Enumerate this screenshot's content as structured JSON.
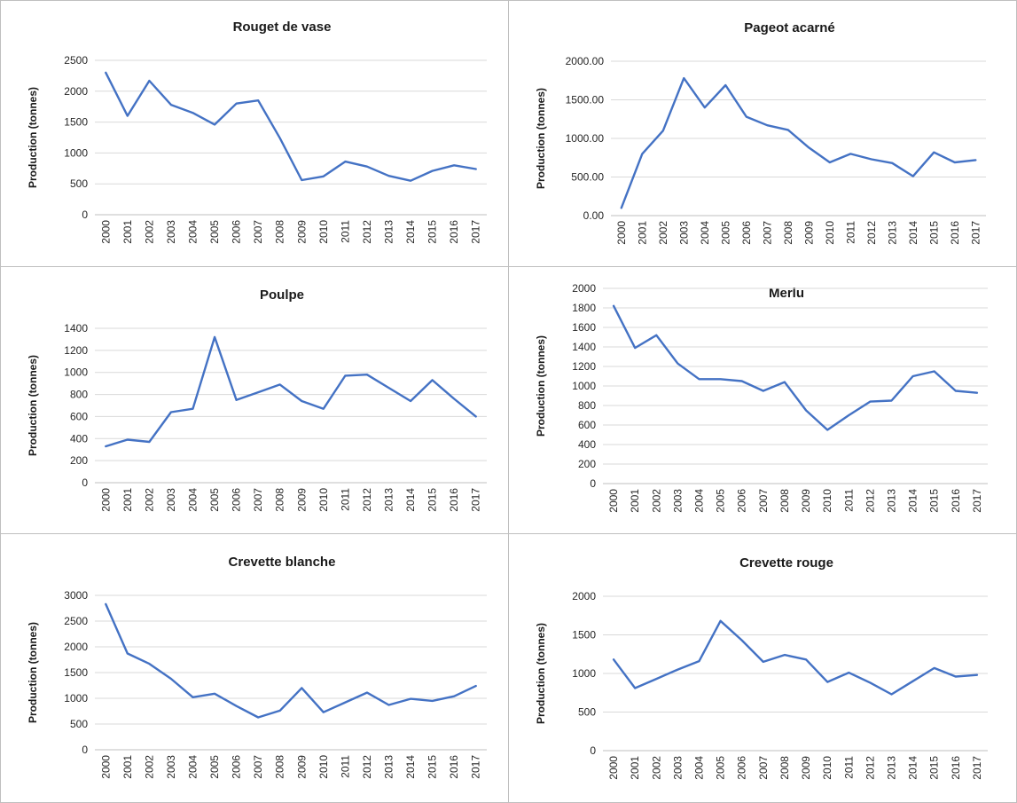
{
  "colors": {
    "line": "#4472C4",
    "grid": "#d9d9d9",
    "border": "#bfbfbf"
  },
  "chart_data": [
    {
      "type": "line",
      "title": "Rouget de vase",
      "ylabel": "Production (tonnes)",
      "xlabel": "",
      "categories": [
        "2000",
        "2001",
        "2002",
        "2003",
        "2004",
        "2005",
        "2006",
        "2007",
        "2008",
        "2009",
        "2010",
        "2011",
        "2012",
        "2013",
        "2014",
        "2015",
        "2016",
        "2017"
      ],
      "values": [
        2300,
        1600,
        2170,
        1780,
        1650,
        1460,
        1800,
        1850,
        1240,
        560,
        620,
        860,
        780,
        630,
        550,
        710,
        800,
        740
      ],
      "ylim": [
        0,
        2500
      ],
      "yticks": [
        "0",
        "500",
        "1000",
        "1500",
        "2000",
        "2500"
      ],
      "grid": true
    },
    {
      "type": "line",
      "title": "Pageot acarné",
      "ylabel": "Production (tonnes)",
      "xlabel": "",
      "categories": [
        "2000",
        "2001",
        "2002",
        "2003",
        "2004",
        "2005",
        "2006",
        "2007",
        "2008",
        "2009",
        "2010",
        "2011",
        "2012",
        "2013",
        "2014",
        "2015",
        "2016",
        "2017"
      ],
      "values": [
        100,
        800,
        1100,
        1780,
        1400,
        1690,
        1280,
        1170,
        1110,
        880,
        690,
        800,
        730,
        680,
        510,
        820,
        690,
        720
      ],
      "ylim": [
        0,
        2000
      ],
      "yticks": [
        "0.00",
        "500.00",
        "1000.00",
        "1500.00",
        "2000.00"
      ],
      "grid": true
    },
    {
      "type": "line",
      "title": "Poulpe",
      "ylabel": "Production (tonnes)",
      "xlabel": "",
      "categories": [
        "2000",
        "2001",
        "2002",
        "2003",
        "2004",
        "2005",
        "2006",
        "2007",
        "2008",
        "2009",
        "2010",
        "2011",
        "2012",
        "2013",
        "2014",
        "2015",
        "2016",
        "2017"
      ],
      "values": [
        330,
        390,
        370,
        640,
        670,
        1320,
        750,
        820,
        890,
        740,
        670,
        970,
        980,
        860,
        740,
        930,
        760,
        600
      ],
      "ylim": [
        0,
        1400
      ],
      "yticks": [
        "0",
        "200",
        "400",
        "600",
        "800",
        "1000",
        "1200",
        "1400"
      ],
      "grid": true
    },
    {
      "type": "line",
      "title": "Merlu",
      "ylabel": "Production (tonnes)",
      "xlabel": "",
      "categories": [
        "2000",
        "2001",
        "2002",
        "2003",
        "2004",
        "2005",
        "2006",
        "2007",
        "2008",
        "2009",
        "2010",
        "2011",
        "2012",
        "2013",
        "2014",
        "2015",
        "2016",
        "2017"
      ],
      "values": [
        1820,
        1390,
        1520,
        1230,
        1070,
        1070,
        1050,
        950,
        1040,
        750,
        550,
        700,
        840,
        850,
        1100,
        1150,
        950,
        930
      ],
      "ylim": [
        0,
        2000
      ],
      "yticks": [
        "0",
        "200",
        "400",
        "600",
        "800",
        "1000",
        "1200",
        "1400",
        "1600",
        "1800",
        "2000"
      ],
      "grid": true
    },
    {
      "type": "line",
      "title": "Crevette blanche",
      "ylabel": "Production (tonnes)",
      "xlabel": "",
      "categories": [
        "2000",
        "2001",
        "2002",
        "2003",
        "2004",
        "2005",
        "2006",
        "2007",
        "2008",
        "2009",
        "2010",
        "2011",
        "2012",
        "2013",
        "2014",
        "2015",
        "2016",
        "2017"
      ],
      "values": [
        2830,
        1870,
        1670,
        1380,
        1020,
        1090,
        850,
        630,
        760,
        1200,
        730,
        920,
        1110,
        870,
        990,
        950,
        1040,
        1240
      ],
      "ylim": [
        0,
        3000
      ],
      "yticks": [
        "0",
        "500",
        "1000",
        "1500",
        "2000",
        "2500",
        "3000"
      ],
      "grid": true
    },
    {
      "type": "line",
      "title": "Crevette rouge",
      "ylabel": "Production (tonnes)",
      "xlabel": "",
      "categories": [
        "2000",
        "2001",
        "2002",
        "2003",
        "2004",
        "2005",
        "2006",
        "2007",
        "2008",
        "2009",
        "2010",
        "2011",
        "2012",
        "2013",
        "2014",
        "2015",
        "2016",
        "2017"
      ],
      "values": [
        1180,
        810,
        930,
        1050,
        1160,
        1680,
        1430,
        1150,
        1240,
        1180,
        890,
        1010,
        880,
        730,
        900,
        1070,
        960,
        980
      ],
      "ylim": [
        0,
        2000
      ],
      "yticks": [
        "0",
        "500",
        "1000",
        "1500",
        "2000"
      ],
      "grid": true
    }
  ]
}
